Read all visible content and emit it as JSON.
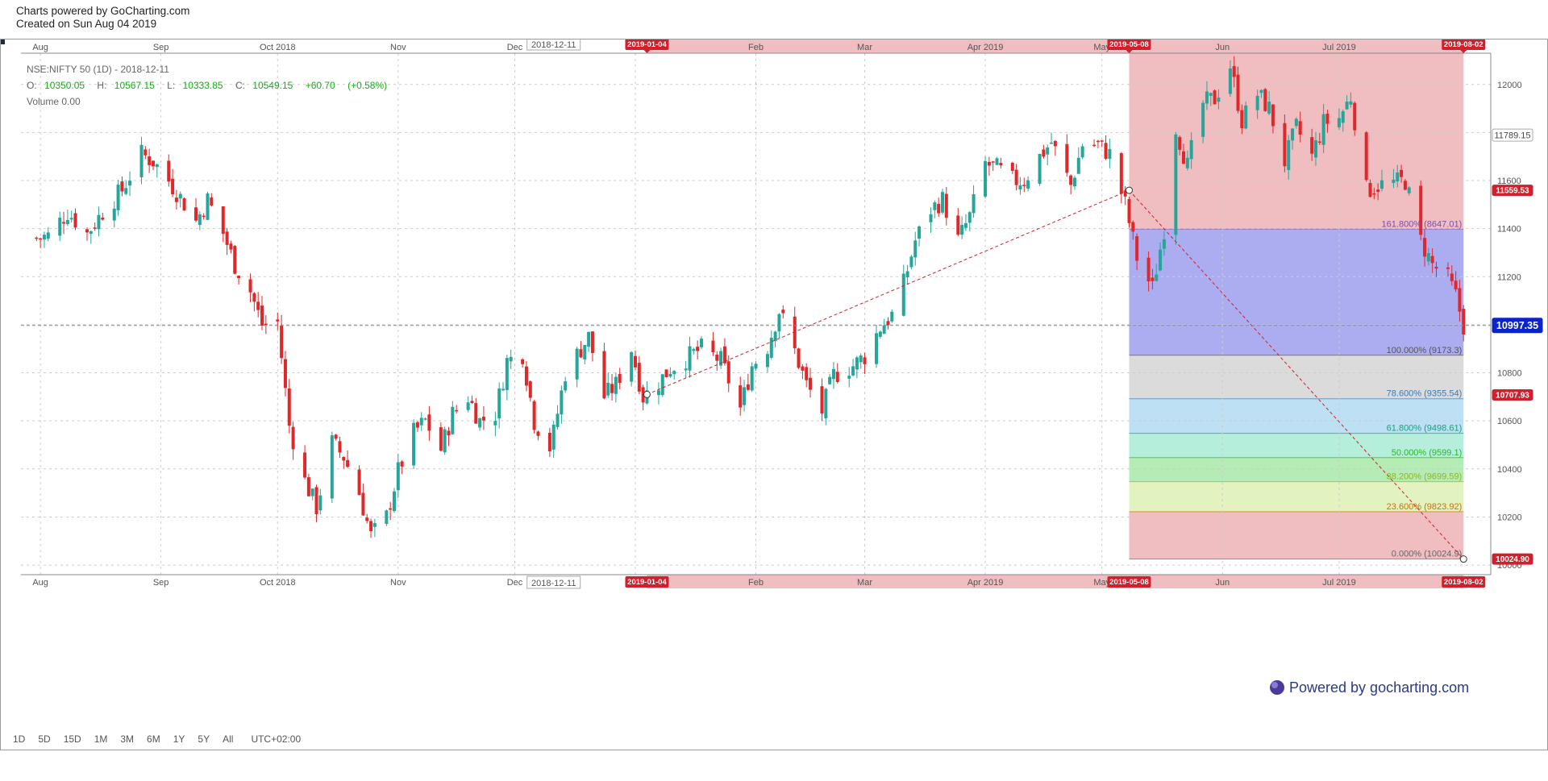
{
  "header": {
    "line1": "Charts powered by GoCharting.com",
    "line2": "Created on Sun Aug 04 2019"
  },
  "legend": {
    "symbol_line": "NSE:NIFTY 50 (1D) - 2018-12-11",
    "o_label": "O:",
    "o_value": "10350.05",
    "h_label": "H:",
    "h_value": "10567.15",
    "l_label": "L:",
    "l_value": "10333.85",
    "c_label": "C:",
    "c_value": "10549.15",
    "change": "+60.70",
    "change_pct": "(+0.58%)",
    "volume": "Volume 0.00",
    "up_color": "#1aad1a"
  },
  "timeframes": [
    "1D",
    "5D",
    "15D",
    "1M",
    "3M",
    "6M",
    "1Y",
    "5Y",
    "All"
  ],
  "timezone": "UTC+02:00",
  "branding": "Powered by gocharting.com",
  "colors": {
    "up": "#26a69a",
    "down": "#e0282b",
    "grid": "#cccccc",
    "zone": "#e89a9e",
    "marker": "#d0202c",
    "price_tag": "#0a24c8"
  },
  "chart_data": {
    "type": "candlestick",
    "symbol": "NSE:NIFTY 50",
    "interval": "1D",
    "x_range": [
      "2018-07-27",
      "2019-08-09"
    ],
    "y_range": [
      9960,
      12130
    ],
    "month_ticks": [
      {
        "label": "Aug",
        "date": "2018-08-01"
      },
      {
        "label": "Sep",
        "date": "2018-09-01"
      },
      {
        "label": "Oct 2018",
        "date": "2018-10-01"
      },
      {
        "label": "Nov",
        "date": "2018-11-01"
      },
      {
        "label": "Dec",
        "date": "2018-12-01"
      },
      {
        "label": "2019",
        "date": "2019-01-01"
      },
      {
        "label": "Feb",
        "date": "2019-02-01"
      },
      {
        "label": "Mar",
        "date": "2019-03-01"
      },
      {
        "label": "Apr 2019",
        "date": "2019-04-01"
      },
      {
        "label": "May",
        "date": "2019-05-01"
      },
      {
        "label": "Jun",
        "date": "2019-06-01"
      },
      {
        "label": "Jul 2019",
        "date": "2019-07-01"
      }
    ],
    "y_ticks": [
      10000,
      10200,
      10400,
      10600,
      10800,
      11000,
      11200,
      11400,
      11600,
      11800,
      12000
    ],
    "crosshair": {
      "date": "2018-12-11",
      "label": "2018-12-11",
      "price": 10997.35,
      "price_label": "10997.35"
    },
    "date_markers": [
      "2019-01-04",
      "2019-05-08",
      "2019-08-02"
    ],
    "price_tags": [
      {
        "label": "11789.15",
        "value": 11789.15,
        "style": "outline"
      },
      {
        "label": "11559.53",
        "value": 11559.53,
        "style": "red"
      },
      {
        "label": "10997.35",
        "value": 10997.35,
        "style": "blue"
      },
      {
        "label": "10707.93",
        "value": 10707.93,
        "style": "red"
      },
      {
        "label": "10024.90",
        "value": 10024.9,
        "style": "red"
      }
    ],
    "trend_line": {
      "from": {
        "date": "2019-01-04",
        "price": 10710
      },
      "to": {
        "date": "2019-05-08",
        "price": 11559.53
      }
    },
    "fib_line": {
      "from": {
        "date": "2019-05-08",
        "price": 11559.53
      },
      "to": {
        "date": "2019-08-02",
        "price": 10024.9
      }
    },
    "fib_zone": {
      "from": "2019-05-08",
      "to": "2019-08-02",
      "top": 12130,
      "bottom": 10024.9
    },
    "fib_levels": [
      {
        "label": "161.800% (8647.01)",
        "price": 11398,
        "bottom": 10873,
        "color": "#8080e8",
        "text_color": "#7a4fa8"
      },
      {
        "label": "100.000% (9173.3)",
        "price": 10873,
        "bottom": 10692,
        "color": "#c8c8c8",
        "text_color": "#555555"
      },
      {
        "label": "78.600% (9355.54)",
        "price": 10692,
        "bottom": 10548,
        "color": "#9ad0f0",
        "text_color": "#3a7ab8"
      },
      {
        "label": "61.800% (9498.61)",
        "price": 10548,
        "bottom": 10447,
        "color": "#8ee6c8",
        "text_color": "#18a078"
      },
      {
        "label": "50.000% (9599.1)",
        "price": 10447,
        "bottom": 10347,
        "color": "#8ee08e",
        "text_color": "#2ab52a"
      },
      {
        "label": "38.200% (9699.59)",
        "price": 10347,
        "bottom": 10222,
        "color": "#d2ec9c",
        "text_color": "#8fb818"
      },
      {
        "label": "23.600% (9823.92)",
        "price": 10222,
        "bottom": 10024.9,
        "color": "#e89a9e",
        "text_color": "#c87010"
      },
      {
        "label": "0.000% (10024.9)",
        "price": 10024.9,
        "bottom": 10024.9,
        "color": "#e89a9e",
        "text_color": "#666666"
      }
    ],
    "candles_path": [
      [
        "2018-07-31",
        11360
      ],
      [
        "2018-08-03",
        11370
      ],
      [
        "2018-08-08",
        11470
      ],
      [
        "2018-08-13",
        11380
      ],
      [
        "2018-08-17",
        11470
      ],
      [
        "2018-08-22",
        11560
      ],
      [
        "2018-08-27",
        11710
      ],
      [
        "2018-08-30",
        11680
      ],
      [
        "2018-09-03",
        11600
      ],
      [
        "2018-09-06",
        11530
      ],
      [
        "2018-09-10",
        11430
      ],
      [
        "2018-09-13",
        11520
      ],
      [
        "2018-09-17",
        11380
      ],
      [
        "2018-09-20",
        11250
      ],
      [
        "2018-09-24",
        11140
      ],
      [
        "2018-09-27",
        11000
      ],
      [
        "2018-10-01",
        11010
      ],
      [
        "2018-10-04",
        10580
      ],
      [
        "2018-10-08",
        10350
      ],
      [
        "2018-10-11",
        10240
      ],
      [
        "2018-10-15",
        10510
      ],
      [
        "2018-10-18",
        10450
      ],
      [
        "2018-10-22",
        10300
      ],
      [
        "2018-10-25",
        10120
      ],
      [
        "2018-10-29",
        10200
      ],
      [
        "2018-11-01",
        10390
      ],
      [
        "2018-11-05",
        10550
      ],
      [
        "2018-11-08",
        10600
      ],
      [
        "2018-11-12",
        10480
      ],
      [
        "2018-11-15",
        10630
      ],
      [
        "2018-11-19",
        10700
      ],
      [
        "2018-11-22",
        10600
      ],
      [
        "2018-11-26",
        10630
      ],
      [
        "2018-11-29",
        10850
      ],
      [
        "2018-12-03",
        10880
      ],
      [
        "2018-12-06",
        10600
      ],
      [
        "2018-12-10",
        10490
      ],
      [
        "2018-12-11",
        10549
      ],
      [
        "2018-12-14",
        10800
      ],
      [
        "2018-12-18",
        10900
      ],
      [
        "2018-12-20",
        10950
      ],
      [
        "2018-12-24",
        10700
      ],
      [
        "2018-12-27",
        10750
      ],
      [
        "2018-12-31",
        10900
      ],
      [
        "2019-01-03",
        10700
      ],
      [
        "2019-01-07",
        10760
      ],
      [
        "2019-01-10",
        10820
      ],
      [
        "2019-01-15",
        10870
      ],
      [
        "2019-01-18",
        10900
      ],
      [
        "2019-01-23",
        10850
      ],
      [
        "2019-01-28",
        10650
      ],
      [
        "2019-01-31",
        10830
      ],
      [
        "2019-02-04",
        10910
      ],
      [
        "2019-02-07",
        11060
      ],
      [
        "2019-02-11",
        10890
      ],
      [
        "2019-02-14",
        10750
      ],
      [
        "2019-02-18",
        10640
      ],
      [
        "2019-02-21",
        10790
      ],
      [
        "2019-02-26",
        10830
      ],
      [
        "2019-03-01",
        10870
      ],
      [
        "2019-03-05",
        10990
      ],
      [
        "2019-03-08",
        11040
      ],
      [
        "2019-03-11",
        11170
      ],
      [
        "2019-03-14",
        11350
      ],
      [
        "2019-03-18",
        11480
      ],
      [
        "2019-03-21",
        11520
      ],
      [
        "2019-03-25",
        11350
      ],
      [
        "2019-03-28",
        11450
      ],
      [
        "2019-04-01",
        11670
      ],
      [
        "2019-04-04",
        11650
      ],
      [
        "2019-04-08",
        11600
      ],
      [
        "2019-04-11",
        11600
      ],
      [
        "2019-04-15",
        11700
      ],
      [
        "2019-04-18",
        11760
      ],
      [
        "2019-04-23",
        11580
      ],
      [
        "2019-04-26",
        11750
      ],
      [
        "2019-04-30",
        11750
      ],
      [
        "2019-05-03",
        11710
      ],
      [
        "2019-05-07",
        11500
      ],
      [
        "2019-05-10",
        11280
      ],
      [
        "2019-05-14",
        11150
      ],
      [
        "2019-05-17",
        11400
      ],
      [
        "2019-05-20",
        11820
      ],
      [
        "2019-05-23",
        11660
      ],
      [
        "2019-05-27",
        11920
      ],
      [
        "2019-05-30",
        11940
      ],
      [
        "2019-06-03",
        12080
      ],
      [
        "2019-06-06",
        11850
      ],
      [
        "2019-06-10",
        11960
      ],
      [
        "2019-06-13",
        11900
      ],
      [
        "2019-06-17",
        11680
      ],
      [
        "2019-06-20",
        11820
      ],
      [
        "2019-06-24",
        11700
      ],
      [
        "2019-06-27",
        11840
      ],
      [
        "2019-07-01",
        11860
      ],
      [
        "2019-07-04",
        11950
      ],
      [
        "2019-07-08",
        11560
      ],
      [
        "2019-07-11",
        11580
      ],
      [
        "2019-07-15",
        11590
      ],
      [
        "2019-07-18",
        11600
      ],
      [
        "2019-07-22",
        11350
      ],
      [
        "2019-07-25",
        11250
      ],
      [
        "2019-07-29",
        11190
      ],
      [
        "2019-07-31",
        11120
      ],
      [
        "2019-08-02",
        10997
      ]
    ]
  }
}
